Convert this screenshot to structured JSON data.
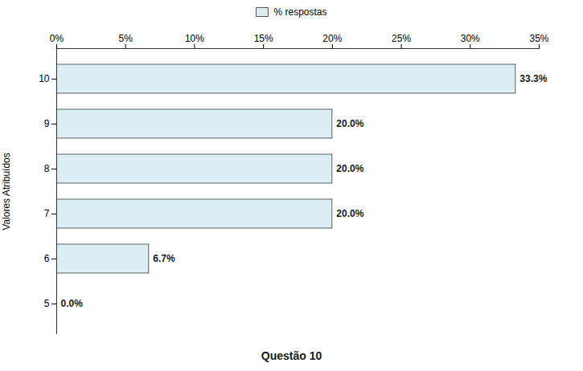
{
  "chart_data": {
    "type": "bar",
    "orientation": "horizontal",
    "xlabel": "Questão 10",
    "ylabel": "Valores Atribuídos",
    "categories": [
      5,
      6,
      7,
      8,
      9,
      10
    ],
    "series": [
      {
        "name": "% respostas",
        "color": "#daeef3",
        "values": [
          0.0,
          6.7,
          20.0,
          20.0,
          20.0,
          33.3
        ],
        "value_labels": [
          "0.0%",
          "6.7%",
          "20.0%",
          "20.0%",
          "20.0%",
          "33.3%"
        ]
      }
    ],
    "xlim": [
      0,
      35
    ],
    "xticks": [
      {
        "value": 0,
        "label": "0%"
      },
      {
        "value": 5,
        "label": "5%"
      },
      {
        "value": 10,
        "label": "10%"
      },
      {
        "value": 15,
        "label": "15%"
      },
      {
        "value": 20,
        "label": "20%"
      },
      {
        "value": 25,
        "label": "25%"
      },
      {
        "value": 30,
        "label": "30%"
      },
      {
        "value": 35,
        "label": "35%"
      }
    ],
    "grid": false,
    "legend": "top",
    "data_labels": true
  }
}
